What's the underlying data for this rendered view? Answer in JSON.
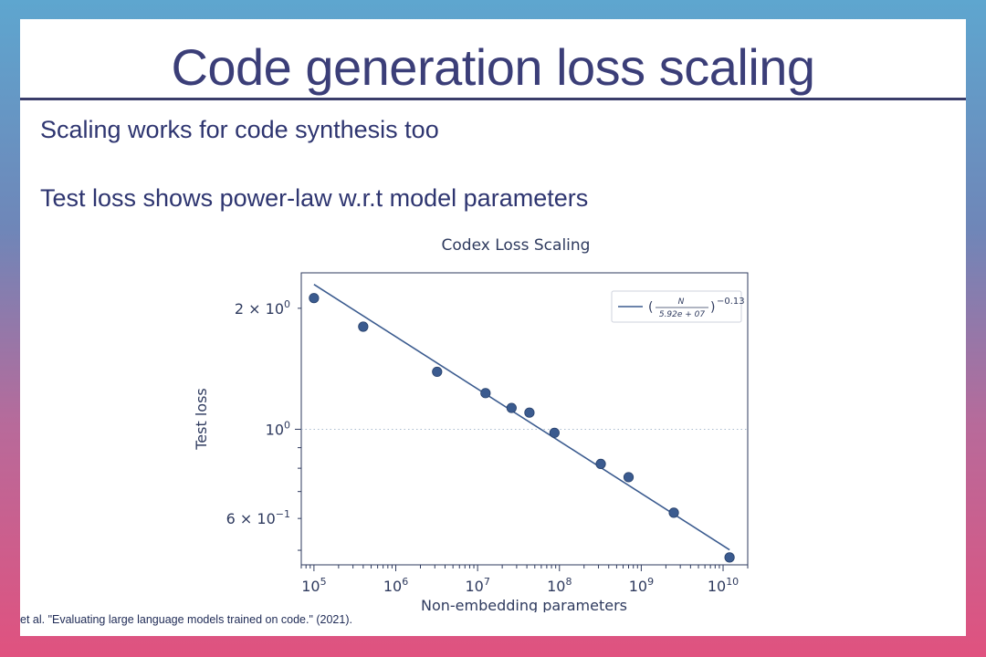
{
  "slide": {
    "title": "Code generation loss scaling",
    "bullets": [
      "Scaling works for code synthesis too",
      "Test loss shows power-law w.r.t model parameters"
    ],
    "citation": "et al. \"Evaluating large language models trained on code.\"  (2021)."
  },
  "colors": {
    "title": "#3b3e78",
    "series": "#3b5b8f",
    "slide_bg": "#ffffff"
  },
  "chart_data": {
    "type": "scatter",
    "title": "Codex Loss Scaling",
    "xlabel": "Non-embedding parameters",
    "ylabel": "Test loss",
    "xscale": "log",
    "yscale": "log",
    "xlim": [
      70000,
      20000000000
    ],
    "ylim": [
      0.46,
      2.45
    ],
    "x_ticks": [
      {
        "value": 100000,
        "base": "10",
        "exp": "5"
      },
      {
        "value": 1000000,
        "base": "10",
        "exp": "6"
      },
      {
        "value": 10000000,
        "base": "10",
        "exp": "7"
      },
      {
        "value": 100000000,
        "base": "10",
        "exp": "8"
      },
      {
        "value": 1000000000,
        "base": "10",
        "exp": "9"
      },
      {
        "value": 10000000000,
        "base": "10",
        "exp": "10"
      }
    ],
    "y_ticks": [
      {
        "value": 2.0,
        "base": "2 × 10",
        "exp": "0"
      },
      {
        "value": 1.0,
        "base": "10",
        "exp": "0"
      },
      {
        "value": 0.6,
        "base": "6 × 10",
        "exp": "−1"
      }
    ],
    "grid": "y-major dotted",
    "legend_placement": "top-right",
    "legend": {
      "num": "N",
      "den": "5.92e + 07",
      "exp": "−0.13"
    },
    "fit": {
      "scale": 59200000,
      "exponent": -0.13,
      "x_range": [
        100000,
        12000000000
      ]
    },
    "points": [
      {
        "x": 100000,
        "y": 2.12
      },
      {
        "x": 400000,
        "y": 1.8
      },
      {
        "x": 3200000,
        "y": 1.39
      },
      {
        "x": 12500000,
        "y": 1.23
      },
      {
        "x": 26000000,
        "y": 1.13
      },
      {
        "x": 43000000,
        "y": 1.1
      },
      {
        "x": 87000000,
        "y": 0.98
      },
      {
        "x": 320000000,
        "y": 0.82
      },
      {
        "x": 700000000,
        "y": 0.76
      },
      {
        "x": 2500000000,
        "y": 0.62
      },
      {
        "x": 12000000000,
        "y": 0.48
      }
    ]
  }
}
